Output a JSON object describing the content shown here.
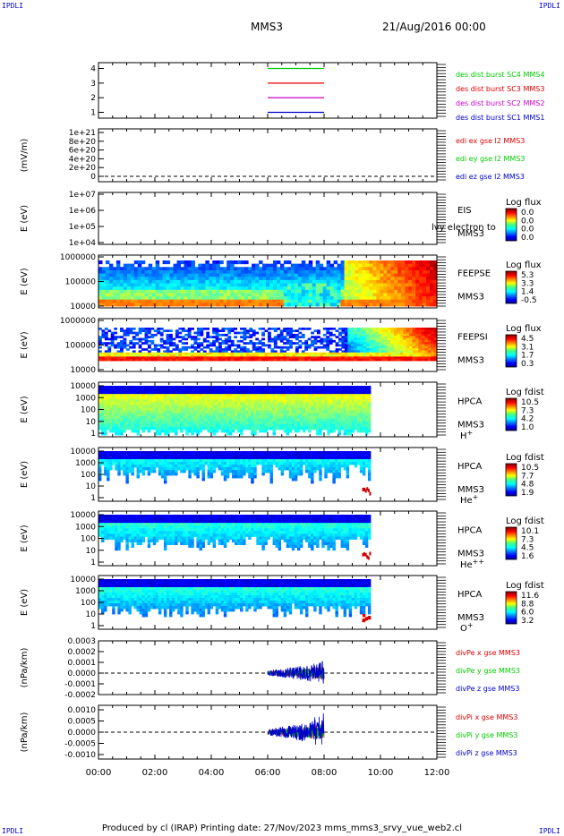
{
  "corners": {
    "tl": "IPDLI",
    "tr": "IPDLI",
    "bl": "IPDLI",
    "br": "IPDLI"
  },
  "header": {
    "spacecraft": "MMS3",
    "date": "21/Aug/2016 00:00"
  },
  "footer": {
    "text": "Produced by cl (IRAP)   Printing date: 27/Nov/2023   mms_mms3_srvy_vue_web2.cl"
  },
  "time_axis": {
    "ticks": [
      "00:00",
      "02:00",
      "04:00",
      "06:00",
      "08:00",
      "10:00",
      "12:00"
    ],
    "range_hours": [
      0,
      12
    ]
  },
  "colors": {
    "red": "#e00000",
    "green": "#00cc00",
    "blue": "#0000cc",
    "magenta": "#cc00cc"
  },
  "chart_data": [
    {
      "type": "line",
      "id": "burst",
      "yticks": [
        "1",
        "2",
        "3",
        "4"
      ],
      "ylim": [
        0.6,
        4.4
      ],
      "series": [
        {
          "name": "des dist burst SC1 MMS1",
          "y": 1,
          "x": [
            6.0,
            8.0
          ],
          "color": "#0000cc"
        },
        {
          "name": "des dist burst SC2 MMS2",
          "y": 2,
          "x": [
            6.0,
            8.0
          ],
          "color": "#cc00cc"
        },
        {
          "name": "des dist burst SC3 MMS3",
          "y": 3,
          "x": [
            6.0,
            8.0
          ],
          "color": "#e00000"
        },
        {
          "name": "des dist burst SC4 MMS4",
          "y": 4,
          "x": [
            6.0,
            8.0
          ],
          "color": "#00cc00"
        }
      ]
    },
    {
      "type": "line",
      "id": "edi",
      "ylabel": "(mV/m)",
      "yticks": [
        "0",
        "2e+20",
        "4e+20",
        "6e+20",
        "8e+20",
        "1e+21"
      ],
      "legend": [
        {
          "name": "edi ex gse l2 MMS3",
          "color": "#e00000"
        },
        {
          "name": "edi ey gse l2 MMS3",
          "color": "#00cc00"
        },
        {
          "name": "edi ez gse l2 MMS3",
          "color": "#0000cc"
        }
      ]
    },
    {
      "type": "heatmap",
      "id": "eis",
      "ylabel": "E (eV)",
      "yticks": [
        "1e+07",
        "1e+06",
        "1e+05",
        "1e+04"
      ],
      "labels": [
        "EIS",
        "MMS3"
      ],
      "overlay_text": "lvy electron to",
      "colorbar": {
        "title": "Log flux",
        "ticks": [
          "0.0",
          "0.0",
          "0.0",
          "0.0"
        ]
      }
    },
    {
      "type": "heatmap",
      "id": "feepse",
      "ylabel": "E (eV)",
      "yticks": [
        "1000000",
        "100000",
        "10000"
      ],
      "labels": [
        "FEEPSE",
        "MMS3"
      ],
      "colorbar": {
        "title": "Log flux",
        "ticks": [
          "5.3",
          "3.3",
          "1.4",
          "-0.5"
        ]
      }
    },
    {
      "type": "heatmap",
      "id": "feepsi",
      "ylabel": "E (eV)",
      "yticks": [
        "1000000",
        "100000",
        "10000"
      ],
      "labels": [
        "FEEPSI",
        "MMS3"
      ],
      "colorbar": {
        "title": "Log flux",
        "ticks": [
          "4.5",
          "3.1",
          "1.7",
          "0.3"
        ]
      }
    },
    {
      "type": "heatmap",
      "id": "hpca_h",
      "ylabel": "E (eV)",
      "yticks": [
        "10000",
        "1000",
        "100",
        "10",
        "1"
      ],
      "labels": [
        "HPCA",
        "MMS3"
      ],
      "species": {
        "base": "H",
        "sup": "+"
      },
      "colorbar": {
        "title": "Log fdist",
        "ticks": [
          "10.5",
          "7.3",
          "4.2",
          "1.0"
        ]
      }
    },
    {
      "type": "heatmap",
      "id": "hpca_he1",
      "ylabel": "E (eV)",
      "yticks": [
        "10000",
        "1000",
        "100",
        "10",
        "1"
      ],
      "labels": [
        "HPCA",
        "MMS3"
      ],
      "species": {
        "base": "He",
        "sup": "+"
      },
      "colorbar": {
        "title": "Log fdist",
        "ticks": [
          "10.5",
          "7.7",
          "4.8",
          "1.9"
        ]
      }
    },
    {
      "type": "heatmap",
      "id": "hpca_he2",
      "ylabel": "E (eV)",
      "yticks": [
        "10000",
        "1000",
        "100",
        "10",
        "1"
      ],
      "labels": [
        "HPCA",
        "MMS3"
      ],
      "species": {
        "base": "He",
        "sup": "++"
      },
      "colorbar": {
        "title": "Log fdist",
        "ticks": [
          "10.1",
          "7.3",
          "4.5",
          "1.6"
        ]
      }
    },
    {
      "type": "heatmap",
      "id": "hpca_o",
      "ylabel": "E (eV)",
      "yticks": [
        "10000",
        "1000",
        "100",
        "10",
        "1"
      ],
      "labels": [
        "HPCA",
        "MMS3"
      ],
      "species": {
        "base": "O",
        "sup": "+"
      },
      "colorbar": {
        "title": "Log fdist",
        "ticks": [
          "11.6",
          "8.8",
          "6.0",
          "3.2"
        ]
      }
    },
    {
      "type": "line",
      "id": "divpe",
      "ylabel": "(nPa/km)",
      "yticks": [
        "0.0003",
        "0.0002",
        "0.0001",
        "0.0000",
        "-0.0001",
        "-0.0002"
      ],
      "ylim": [
        -0.0002,
        0.0003
      ],
      "legend": [
        {
          "name": "divPe x gse MMS3",
          "color": "#e00000"
        },
        {
          "name": "divPe y gse MMS3",
          "color": "#00cc00"
        },
        {
          "name": "divPe z gse MMS3",
          "color": "#0000cc"
        }
      ]
    },
    {
      "type": "line",
      "id": "divpi",
      "ylabel": "(nPa/km)",
      "yticks": [
        "0.0010",
        "0.0005",
        "0.0000",
        "-0.0005",
        "-0.0010"
      ],
      "ylim": [
        -0.0012,
        0.0012
      ],
      "legend": [
        {
          "name": "divPi x gse MMS3",
          "color": "#e00000"
        },
        {
          "name": "divPi y gse MMS3",
          "color": "#00cc00"
        },
        {
          "name": "divPi z gse MMS3",
          "color": "#0000cc"
        }
      ]
    }
  ]
}
